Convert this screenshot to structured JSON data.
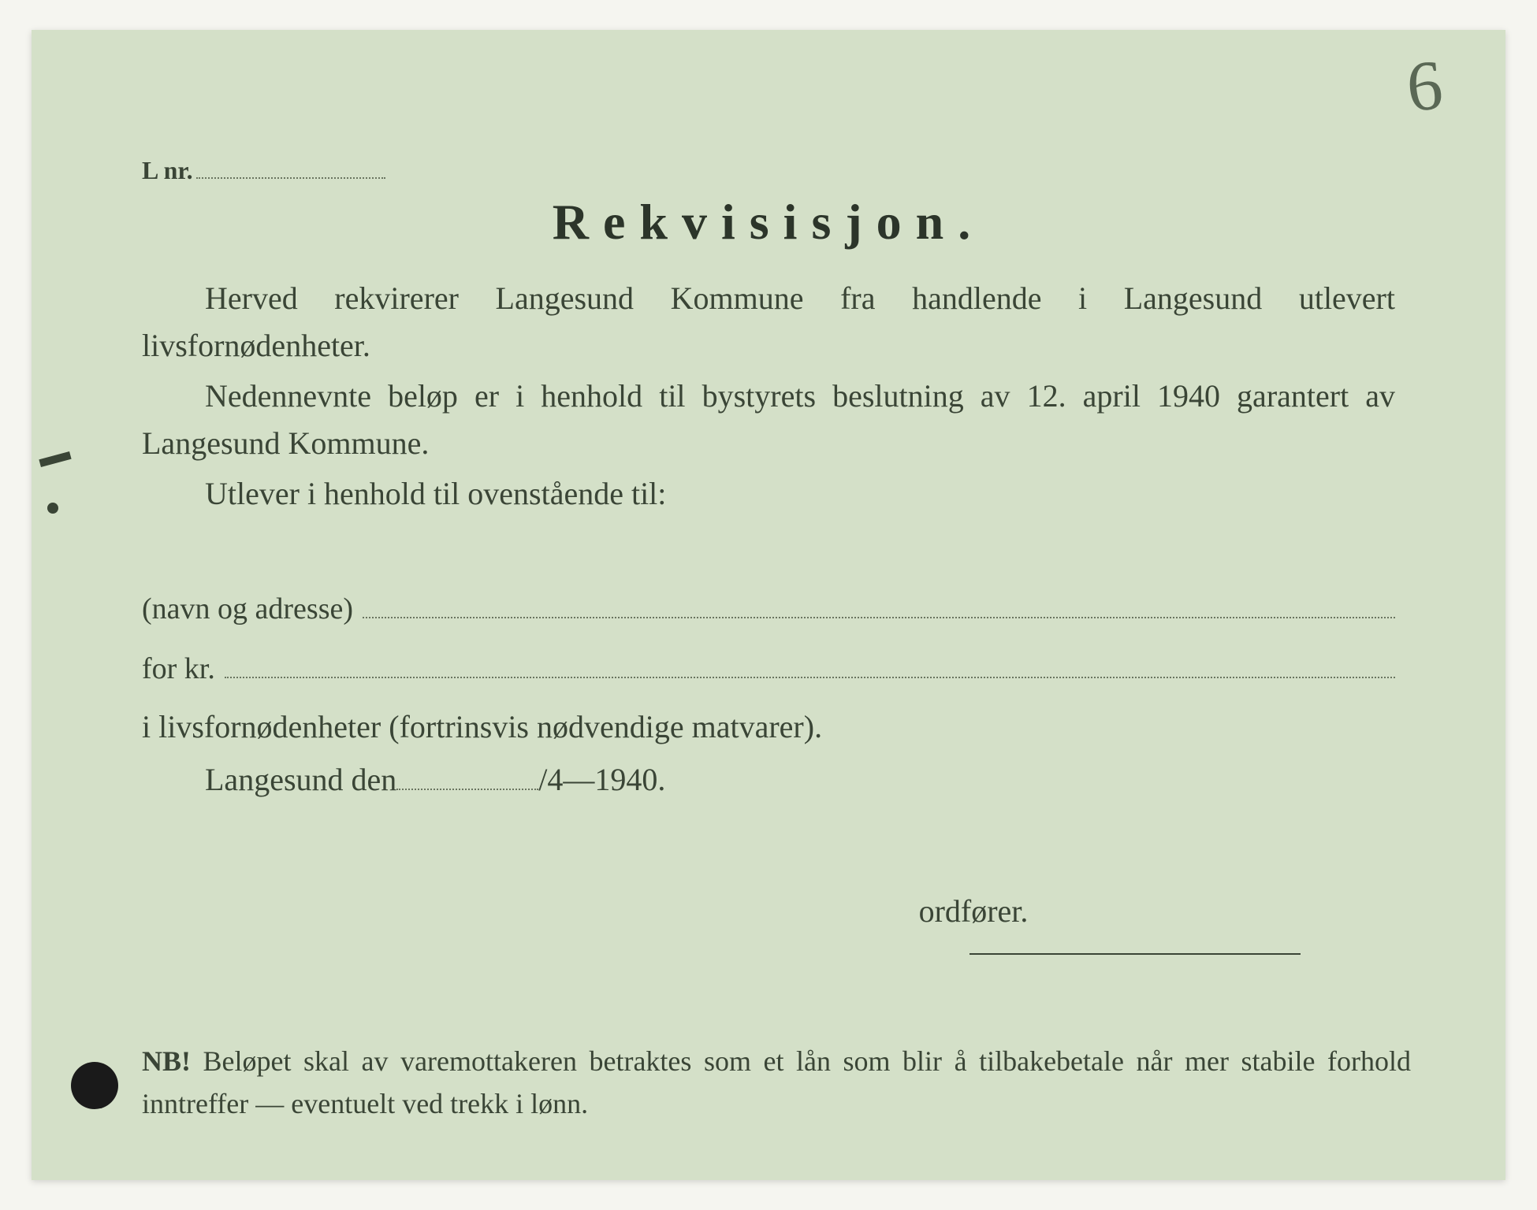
{
  "annotation": {
    "page_number": "6"
  },
  "header": {
    "l_nr_label": "L nr."
  },
  "title": "Rekvisisjon.",
  "body": {
    "paragraph1": "Herved rekvirerer Langesund Kommune fra handlende i Langesund utlevert livsfornødenheter.",
    "paragraph2": "Nedennevnte beløp er i henhold til bystyrets beslutning av 12. april 1940 garantert av Langesund Kommune.",
    "paragraph3": "Utlever i henhold til ovenstående til:"
  },
  "fields": {
    "name_address_label": "(navn og adresse)",
    "amount_label": "for kr.",
    "amount_suffix": "i livsfornødenheter (fortrinsvis nødvendige matvarer).",
    "date_prefix": "Langesund den",
    "date_suffix": "/4—1940."
  },
  "signature": {
    "role": "ordfører."
  },
  "footer": {
    "nb_label": "NB!",
    "nb_text": "Beløpet skal av varemottakeren betraktes som et lån som blir å tilbakebetale når mer stabile forhold inntreffer — eventuelt ved trekk i lønn."
  },
  "colors": {
    "paper": "#d4e0c8",
    "ink": "#3a4536",
    "title_ink": "#2c352a",
    "dotted": "#6a7560",
    "hole": "#1a1a1a"
  },
  "typography": {
    "title_fontsize": 64,
    "title_letterspacing": 18,
    "body_fontsize": 40,
    "field_fontsize": 38,
    "footer_fontsize": 36,
    "annotation_fontsize": 90
  }
}
